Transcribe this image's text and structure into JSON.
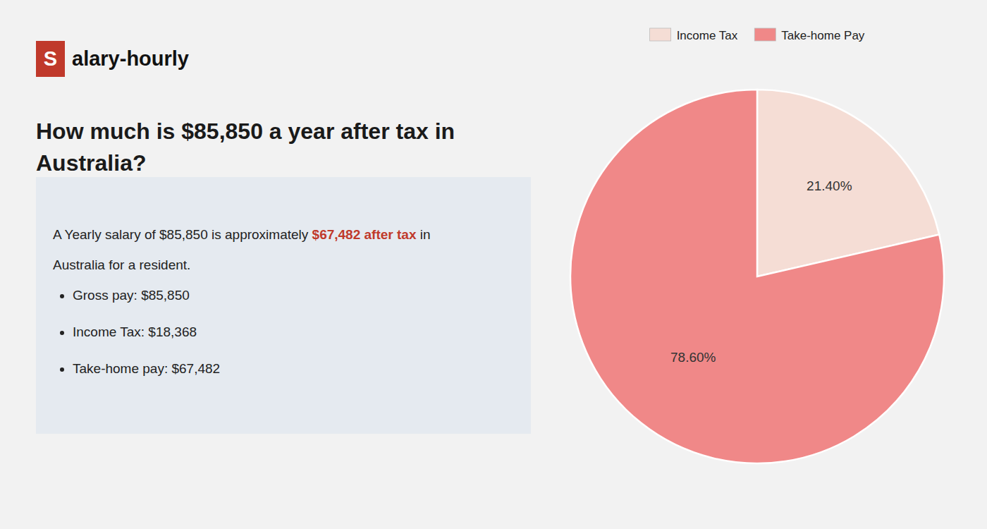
{
  "chart_data": {
    "type": "pie",
    "title": "How much is $85,850 a year after tax in Australia?",
    "categories": [
      "Income Tax",
      "Take-home Pay"
    ],
    "values": [
      21.4,
      78.6
    ],
    "value_labels": [
      "21.40%",
      "78.60%"
    ],
    "data_labels": true,
    "colors": [
      "#f5ddd5",
      "#f08888"
    ],
    "legend": "top",
    "annotations": [
      "S",
      "alary-hourly",
      "A Yearly salary of $85,850 is approximately ",
      "$67,482 after tax",
      " in",
      "Australia for a resident.",
      "Gross pay: $85,850",
      "Income Tax: $18,368",
      "Take-home pay: $67,482"
    ]
  }
}
